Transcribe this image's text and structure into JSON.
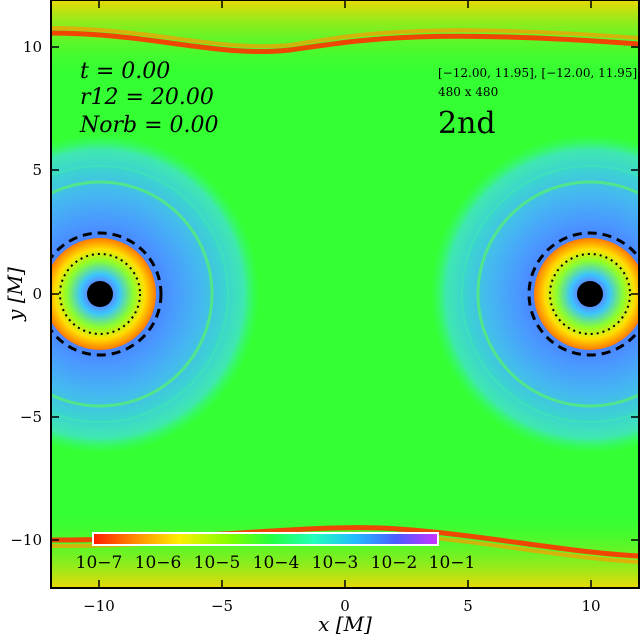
{
  "annotations": {
    "time": "t = 0.00",
    "separation": "r12 = 20.00",
    "orbits": "Norb = 0.00",
    "domain": "[−12.00, 11.95], [−12.00, 11.95]",
    "resolution": "480 x 480",
    "label": "2nd"
  },
  "axes": {
    "xlabel": "x [M]",
    "ylabel": "y [M]",
    "xticks": [
      "−10",
      "−5",
      "0",
      "5",
      "10"
    ],
    "yticks": [
      "10",
      "5",
      "0",
      "−5",
      "−10"
    ],
    "xlim": [
      -12,
      12
    ],
    "ylim": [
      -12,
      12
    ]
  },
  "colorbar": {
    "ticks": [
      "10−7",
      "10−6",
      "10−5",
      "10−4",
      "10−3",
      "10−2",
      "10−1"
    ],
    "scale": "log",
    "range": [
      1e-07,
      0.1
    ]
  },
  "colors": {
    "background_field": "#33ff33",
    "inner_blue": "#4a8cff",
    "black_hole": "#000000",
    "stream_red": "#ff2a00"
  },
  "black_holes": [
    {
      "x": -10,
      "y": 0
    },
    {
      "x": 10,
      "y": 0
    }
  ]
}
